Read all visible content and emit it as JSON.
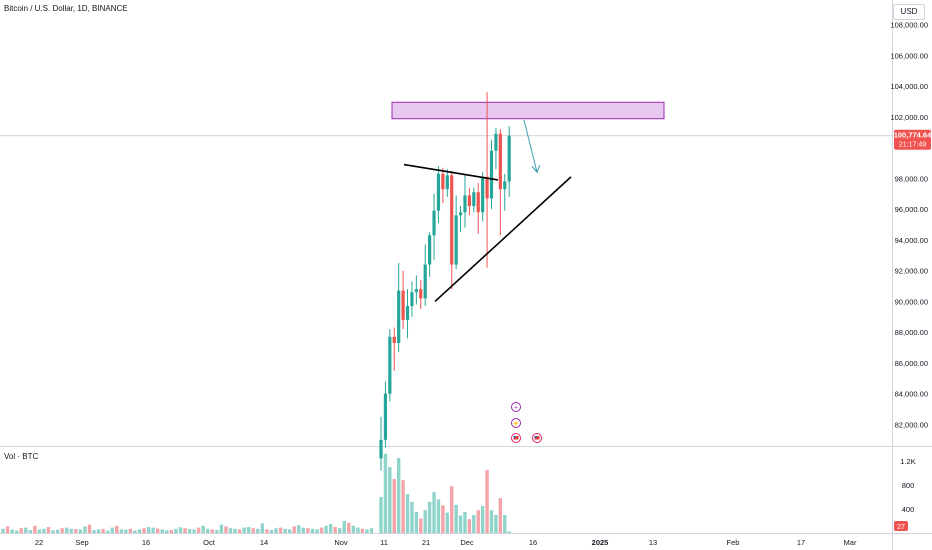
{
  "header": {
    "symbol_title": "Bitcoin / U.S. Dollar, 1D, BINANCE",
    "currency": "USD"
  },
  "price_badge": {
    "price": "100,774.64",
    "countdown": "21:17:49"
  },
  "volume_panel": {
    "title": "Vol · BTC",
    "current_badge": "27"
  },
  "colors": {
    "up": "#26a69a",
    "down": "#ef5350",
    "up_vol": "#8fd4cb",
    "down_vol": "#f4a3a8",
    "zone_fill": "#e9c8f0",
    "zone_stroke": "#9c27b0",
    "arrow": "#3d9fb0",
    "price_badge_bg": "#ef5350"
  },
  "chart_data": {
    "type": "candlestick",
    "price_axis": {
      "ticks": [
        "108,000.00",
        "106,000.00",
        "104,000.00",
        "102,000.00",
        "98,000.00",
        "96,000.00",
        "94,000.00",
        "92,000.00",
        "90,000.00",
        "88,000.00",
        "86,000.00",
        "84,000.00",
        "82,000.00"
      ],
      "range": [
        80600,
        109600
      ]
    },
    "volume_axis": {
      "ticks": [
        "1.2K",
        "800",
        "400"
      ],
      "range": [
        0,
        1350
      ]
    },
    "time_axis": {
      "labels": [
        "22",
        "Sep",
        "16",
        "Oct",
        "14",
        "Nov",
        "11",
        "21",
        "Dec",
        "16",
        "2025",
        "13",
        "Feb",
        "17",
        "Mar"
      ]
    },
    "candles": [
      {
        "o": 79800,
        "h": 82500,
        "l": 79000,
        "c": 81000,
        "v": 600
      },
      {
        "o": 81000,
        "h": 84800,
        "l": 80500,
        "c": 84000,
        "v": 1320
      },
      {
        "o": 84000,
        "h": 88200,
        "l": 83500,
        "c": 87700,
        "v": 1100
      },
      {
        "o": 87700,
        "h": 88300,
        "l": 85500,
        "c": 87300,
        "v": 900
      },
      {
        "o": 87300,
        "h": 92500,
        "l": 86700,
        "c": 90700,
        "v": 1250
      },
      {
        "o": 90700,
        "h": 92000,
        "l": 88200,
        "c": 88800,
        "v": 880
      },
      {
        "o": 88800,
        "h": 90800,
        "l": 87600,
        "c": 89700,
        "v": 650
      },
      {
        "o": 89700,
        "h": 91300,
        "l": 89000,
        "c": 90600,
        "v": 520
      },
      {
        "o": 90600,
        "h": 91700,
        "l": 89800,
        "c": 90800,
        "v": 350
      },
      {
        "o": 90800,
        "h": 91400,
        "l": 89500,
        "c": 90200,
        "v": 240
      },
      {
        "o": 90200,
        "h": 93700,
        "l": 89700,
        "c": 92400,
        "v": 380
      },
      {
        "o": 92400,
        "h": 94500,
        "l": 91600,
        "c": 94300,
        "v": 520
      },
      {
        "o": 94300,
        "h": 97000,
        "l": 92700,
        "c": 95900,
        "v": 680
      },
      {
        "o": 95900,
        "h": 98800,
        "l": 95100,
        "c": 98300,
        "v": 560
      },
      {
        "o": 98300,
        "h": 98700,
        "l": 96400,
        "c": 97300,
        "v": 460
      },
      {
        "o": 97300,
        "h": 98600,
        "l": 96800,
        "c": 98200,
        "v": 340
      },
      {
        "o": 98200,
        "h": 98500,
        "l": 90800,
        "c": 92400,
        "v": 780
      },
      {
        "o": 92400,
        "h": 96900,
        "l": 92100,
        "c": 95600,
        "v": 470
      },
      {
        "o": 95600,
        "h": 96200,
        "l": 94500,
        "c": 95800,
        "v": 290
      },
      {
        "o": 95800,
        "h": 98200,
        "l": 94800,
        "c": 96900,
        "v": 350
      },
      {
        "o": 96900,
        "h": 97400,
        "l": 95600,
        "c": 96200,
        "v": 230
      },
      {
        "o": 96200,
        "h": 97400,
        "l": 95800,
        "c": 97100,
        "v": 300
      },
      {
        "o": 97100,
        "h": 97700,
        "l": 94400,
        "c": 95800,
        "v": 380
      },
      {
        "o": 95800,
        "h": 98400,
        "l": 95200,
        "c": 98100,
        "v": 450
      },
      {
        "o": 98100,
        "h": 103600,
        "l": 92200,
        "c": 96700,
        "v": 1050
      },
      {
        "o": 96700,
        "h": 100500,
        "l": 96000,
        "c": 99800,
        "v": 380
      },
      {
        "o": 99800,
        "h": 101300,
        "l": 98600,
        "c": 100900,
        "v": 300
      },
      {
        "o": 100900,
        "h": 101200,
        "l": 94300,
        "c": 97300,
        "v": 580
      },
      {
        "o": 97300,
        "h": 98300,
        "l": 95900,
        "c": 97800,
        "v": 300
      },
      {
        "o": 97800,
        "h": 101400,
        "l": 96800,
        "c": 100774,
        "v": 27
      }
    ],
    "annotations": {
      "resistance_zone": {
        "from": 101880,
        "to": 102950
      },
      "descending_line": {
        "from": 98900,
        "to": 97900
      },
      "ascending_line": {
        "from": 90000,
        "to": 98100
      },
      "projection_arrow": {
        "from": 101800,
        "to": 98400
      },
      "current_price": 100774
    }
  }
}
